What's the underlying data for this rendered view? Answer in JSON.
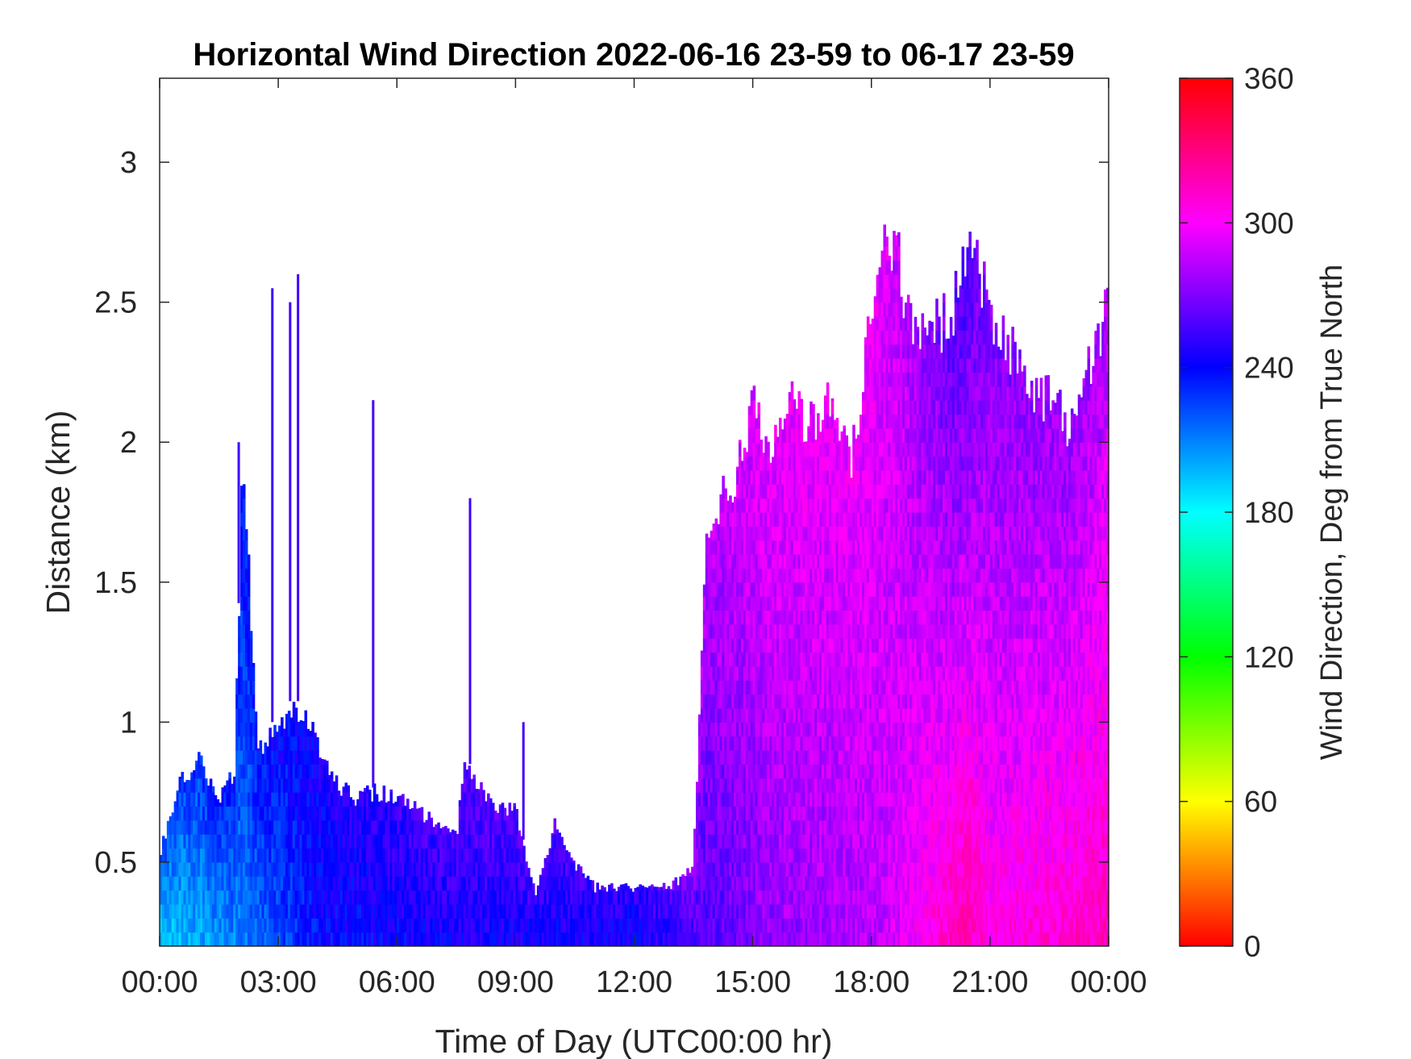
{
  "chart_data": {
    "type": "heatmap",
    "title": "Horizontal Wind Direction 2022-06-16 23-59 to 06-17 23-59",
    "xlabel": "Time of Day (UTC00:00 hr)",
    "ylabel": "Distance (km)",
    "xlim": [
      0,
      24
    ],
    "ylim": [
      0.2,
      3.3
    ],
    "x_ticks": [
      0,
      3,
      6,
      9,
      12,
      15,
      18,
      21,
      24
    ],
    "x_tick_labels": [
      "00:00",
      "03:00",
      "06:00",
      "09:00",
      "12:00",
      "15:00",
      "18:00",
      "21:00",
      "00:00"
    ],
    "y_ticks": [
      0.5,
      1,
      1.5,
      2,
      2.5,
      3
    ],
    "y_tick_labels": [
      "0.5",
      "1",
      "1.5",
      "2",
      "2.5",
      "3"
    ],
    "colorbar": {
      "label": "Wind Direction, Deg from True North",
      "range": [
        0,
        360
      ],
      "ticks": [
        0,
        60,
        120,
        180,
        240,
        300,
        360
      ],
      "tick_labels": [
        "0",
        "60",
        "120",
        "180",
        "240",
        "300",
        "360"
      ],
      "colormap": "hsv"
    },
    "max_distance_profile": {
      "time_hr": [
        0,
        0.5,
        1,
        1.5,
        1.9,
        2.1,
        2.5,
        2.8,
        3.0,
        3.2,
        3.4,
        3.6,
        4,
        4.5,
        5,
        5.5,
        6,
        6.5,
        7,
        7.5,
        7.7,
        8,
        8.5,
        9,
        9.5,
        10,
        10.5,
        11,
        12,
        13,
        13.5,
        13.8,
        14,
        14.5,
        15,
        15.5,
        16,
        16.5,
        17,
        17.5,
        18,
        18.3,
        18.7,
        19,
        19.5,
        20,
        20.5,
        21,
        21.5,
        22,
        22.5,
        23,
        23.5,
        24
      ],
      "max_distance_km": [
        0.55,
        0.8,
        0.9,
        0.75,
        0.85,
        2.0,
        0.9,
        1.0,
        1.0,
        1.05,
        1.1,
        1.05,
        0.95,
        0.8,
        0.75,
        0.77,
        0.75,
        0.7,
        0.65,
        0.6,
        0.9,
        0.8,
        0.7,
        0.7,
        0.4,
        0.65,
        0.5,
        0.42,
        0.42,
        0.43,
        0.5,
        1.65,
        1.8,
        1.9,
        2.2,
        2.0,
        2.2,
        2.1,
        2.25,
        2.0,
        2.5,
        2.9,
        2.7,
        2.5,
        2.45,
        2.5,
        2.75,
        2.55,
        2.4,
        2.2,
        2.2,
        2.1,
        2.35,
        2.55
      ]
    },
    "spikes": [
      {
        "time_hr": 2.0,
        "max_distance_km": 2.0
      },
      {
        "time_hr": 2.85,
        "max_distance_km": 2.55
      },
      {
        "time_hr": 3.3,
        "max_distance_km": 2.5
      },
      {
        "time_hr": 3.5,
        "max_distance_km": 2.6
      },
      {
        "time_hr": 5.4,
        "max_distance_km": 2.15
      },
      {
        "time_hr": 7.85,
        "max_distance_km": 1.8
      },
      {
        "time_hr": 9.2,
        "max_distance_km": 1.0
      }
    ],
    "direction_by_period": {
      "time_hr": [
        0,
        2.5,
        4,
        8,
        12,
        13.8,
        15.5,
        18,
        20.4,
        21,
        23,
        24
      ],
      "direction_deg": [
        190,
        215,
        238,
        245,
        242,
        258,
        275,
        282,
        320,
        305,
        310,
        315
      ]
    },
    "upper_direction_by_period": {
      "time_hr": [
        0,
        2.5,
        4,
        8,
        12,
        13.8,
        15.5,
        18,
        20.4,
        21,
        23,
        24
      ],
      "direction_deg": [
        225,
        240,
        245,
        262,
        255,
        285,
        295,
        298,
        255,
        270,
        275,
        280
      ]
    }
  }
}
